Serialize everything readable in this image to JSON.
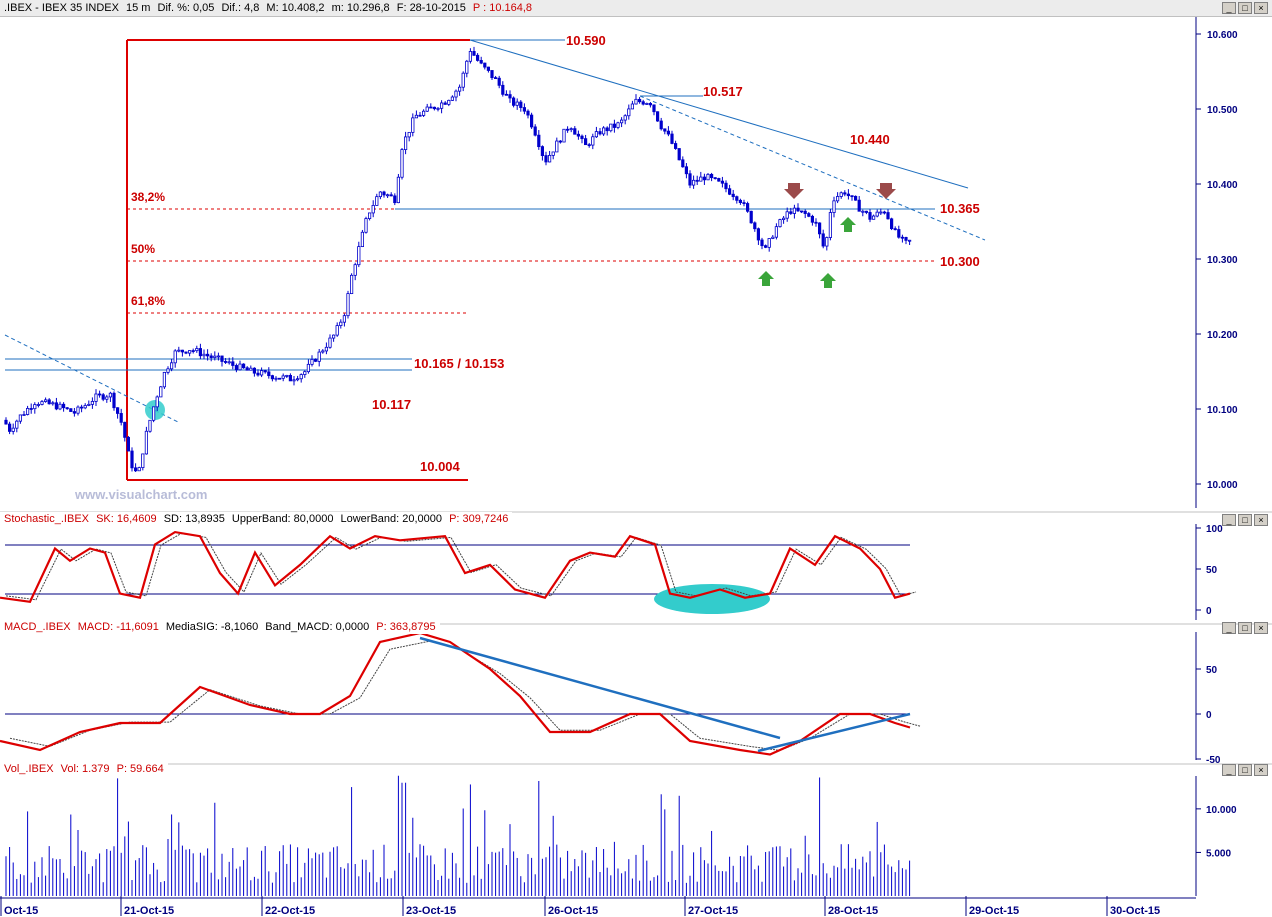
{
  "header": {
    "symbol": ".IBEX - IBEX 35 INDEX",
    "timeframe": "15 m",
    "diff_pct": "Dif. %: 0,05",
    "diff": "Dif.: 4,8",
    "max": "M: 10.408,2",
    "min": "m: 10.296,8",
    "date": "F: 28-10-2015",
    "price": "P : 10.164,8"
  },
  "watermark": "www.visualchart.com",
  "price_axis": {
    "ticks": [
      "10.600",
      "10.500",
      "10.400",
      "10.300",
      "10.200",
      "10.100",
      "10.000"
    ]
  },
  "price_annotations": {
    "high": "10.590",
    "level_10517": "10.517",
    "level_10440": "10.440",
    "level_10365": "10.365",
    "level_10300": "10.300",
    "band": "10.165 / 10.153",
    "level_10117": "10.117",
    "low": "10.004",
    "fib_382": "38,2%",
    "fib_50": "50%",
    "fib_618": "61,8%"
  },
  "stochastic": {
    "title": "Stochastic_.IBEX",
    "sk": "SK: 16,4609",
    "sd": "SD: 13,8935",
    "upper": "UpperBand: 80,0000",
    "lower": "LowerBand: 20,0000",
    "p": "P: 309,7246",
    "ticks": [
      "100",
      "50",
      "0"
    ]
  },
  "macd": {
    "title": "MACD_.IBEX",
    "macd": "MACD: -11,6091",
    "signal": "MediaSIG: -8,1060",
    "band": "Band_MACD: 0,0000",
    "p": "P: 363,8795",
    "ticks": [
      "50",
      "0",
      "-50"
    ]
  },
  "volume": {
    "title": "Vol_.IBEX",
    "vol": "Vol: 1.379",
    "p": "P: 59.664",
    "ticks": [
      "10.000",
      "5.000"
    ]
  },
  "date_axis": [
    "Oct-15",
    "21-Oct-15",
    "22-Oct-15",
    "23-Oct-15",
    "26-Oct-15",
    "27-Oct-15",
    "28-Oct-15",
    "29-Oct-15",
    "30-Oct-15"
  ],
  "colors": {
    "candle": "#0000cc",
    "annotation": "#cc0000",
    "trendline": "#1f6fbf",
    "oscillator": "#dd0000",
    "highlight": "#33cccc",
    "arrow_up": "#3aa53a",
    "arrow_down": "#9b4a4a"
  },
  "chart_data": {
    "type": "candlestick",
    "interval": "15 m",
    "y_range": [
      10000,
      10600
    ],
    "price_path": [
      [
        0,
        10110
      ],
      [
        8,
        10070
      ],
      [
        20,
        10090
      ],
      [
        35,
        10110
      ],
      [
        55,
        10105
      ],
      [
        75,
        10095
      ],
      [
        95,
        10115
      ],
      [
        110,
        10120
      ],
      [
        122,
        10080
      ],
      [
        130,
        10030
      ],
      [
        138,
        10010
      ],
      [
        145,
        10060
      ],
      [
        155,
        10110
      ],
      [
        165,
        10150
      ],
      [
        175,
        10175
      ],
      [
        190,
        10180
      ],
      [
        210,
        10170
      ],
      [
        230,
        10160
      ],
      [
        250,
        10150
      ],
      [
        270,
        10145
      ],
      [
        290,
        10140
      ],
      [
        305,
        10150
      ],
      [
        320,
        10175
      ],
      [
        335,
        10200
      ],
      [
        345,
        10230
      ],
      [
        352,
        10280
      ],
      [
        360,
        10320
      ],
      [
        368,
        10360
      ],
      [
        380,
        10390
      ],
      [
        395,
        10380
      ],
      [
        402,
        10450
      ],
      [
        415,
        10490
      ],
      [
        430,
        10500
      ],
      [
        445,
        10510
      ],
      [
        460,
        10530
      ],
      [
        470,
        10580
      ],
      [
        480,
        10560
      ],
      [
        495,
        10540
      ],
      [
        510,
        10510
      ],
      [
        525,
        10500
      ],
      [
        535,
        10470
      ],
      [
        545,
        10430
      ],
      [
        555,
        10450
      ],
      [
        570,
        10480
      ],
      [
        585,
        10450
      ],
      [
        600,
        10470
      ],
      [
        620,
        10480
      ],
      [
        635,
        10510
      ],
      [
        650,
        10510
      ],
      [
        660,
        10480
      ],
      [
        670,
        10460
      ],
      [
        680,
        10430
      ],
      [
        690,
        10400
      ],
      [
        705,
        10410
      ],
      [
        720,
        10400
      ],
      [
        740,
        10380
      ],
      [
        752,
        10350
      ],
      [
        765,
        10310
      ],
      [
        775,
        10340
      ],
      [
        790,
        10365
      ],
      [
        805,
        10360
      ],
      [
        815,
        10350
      ],
      [
        825,
        10310
      ],
      [
        832,
        10380
      ],
      [
        845,
        10390
      ],
      [
        858,
        10370
      ],
      [
        870,
        10355
      ],
      [
        885,
        10365
      ],
      [
        895,
        10335
      ],
      [
        905,
        10320
      ],
      [
        912,
        10325
      ]
    ],
    "stochastic_path": [
      [
        0,
        15
      ],
      [
        30,
        10
      ],
      [
        55,
        75
      ],
      [
        70,
        60
      ],
      [
        90,
        75
      ],
      [
        105,
        70
      ],
      [
        120,
        20
      ],
      [
        140,
        15
      ],
      [
        155,
        80
      ],
      [
        175,
        95
      ],
      [
        200,
        90
      ],
      [
        220,
        45
      ],
      [
        238,
        20
      ],
      [
        255,
        70
      ],
      [
        275,
        30
      ],
      [
        300,
        55
      ],
      [
        330,
        90
      ],
      [
        350,
        75
      ],
      [
        375,
        90
      ],
      [
        400,
        85
      ],
      [
        445,
        90
      ],
      [
        465,
        45
      ],
      [
        490,
        55
      ],
      [
        515,
        25
      ],
      [
        545,
        15
      ],
      [
        570,
        60
      ],
      [
        590,
        70
      ],
      [
        615,
        65
      ],
      [
        630,
        90
      ],
      [
        655,
        80
      ],
      [
        670,
        20
      ],
      [
        690,
        15
      ],
      [
        720,
        25
      ],
      [
        745,
        15
      ],
      [
        770,
        20
      ],
      [
        790,
        75
      ],
      [
        815,
        55
      ],
      [
        835,
        90
      ],
      [
        860,
        75
      ],
      [
        880,
        50
      ],
      [
        895,
        15
      ],
      [
        910,
        20
      ]
    ],
    "stochastic_bands": [
      20,
      80
    ],
    "macd_path": [
      [
        0,
        -30
      ],
      [
        40,
        -40
      ],
      [
        80,
        -20
      ],
      [
        120,
        -10
      ],
      [
        160,
        -10
      ],
      [
        200,
        30
      ],
      [
        250,
        10
      ],
      [
        290,
        0
      ],
      [
        320,
        0
      ],
      [
        350,
        20
      ],
      [
        380,
        80
      ],
      [
        420,
        90
      ],
      [
        450,
        80
      ],
      [
        490,
        50
      ],
      [
        520,
        20
      ],
      [
        550,
        -20
      ],
      [
        590,
        -20
      ],
      [
        630,
        0
      ],
      [
        660,
        0
      ],
      [
        690,
        -30
      ],
      [
        740,
        -40
      ],
      [
        770,
        -45
      ],
      [
        800,
        -30
      ],
      [
        840,
        0
      ],
      [
        870,
        0
      ],
      [
        895,
        -10
      ],
      [
        910,
        -15
      ]
    ],
    "volume_peaks": [
      13500,
      12500,
      13000,
      12800,
      11500,
      13200,
      13800
    ]
  }
}
